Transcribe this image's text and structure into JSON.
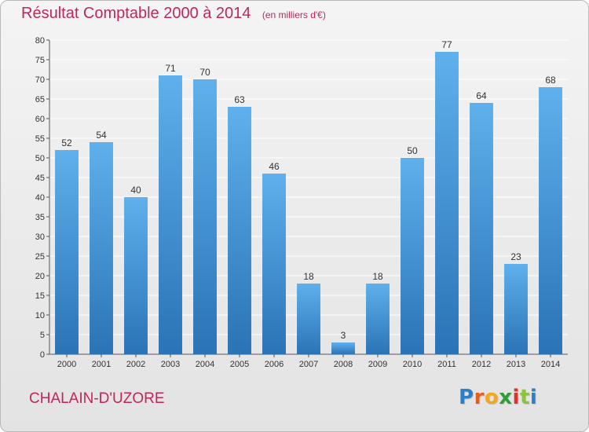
{
  "header": {
    "title": "Résultat Comptable 2000 à 2014",
    "subtitle": "(en milliers d'€)"
  },
  "footer": {
    "town": "CHALAIN-D'UZORE",
    "logo": {
      "text": "Proxiti",
      "letter_colors": [
        "#2e7fc6",
        "#e85d1d",
        "#f2a81d",
        "#2d9c3c",
        "#e0322d",
        "#8bc53f",
        "#2e7fc6"
      ]
    }
  },
  "colors": {
    "bar_top": "#5fb0ec",
    "bar_bottom": "#2a73b6",
    "axis": "#555555",
    "grid": "#ffffff",
    "title": "#c0265a"
  },
  "chart_data": {
    "type": "bar",
    "title": "Résultat Comptable 2000 à 2014",
    "subtitle": "(en milliers d'€)",
    "xlabel": "",
    "ylabel": "",
    "categories": [
      "2000",
      "2001",
      "2002",
      "2003",
      "2004",
      "2005",
      "2006",
      "2007",
      "2008",
      "2009",
      "2010",
      "2011",
      "2012",
      "2013",
      "2014"
    ],
    "values": [
      52,
      54,
      40,
      71,
      70,
      63,
      46,
      18,
      3,
      18,
      50,
      77,
      64,
      23,
      68
    ],
    "ylim": [
      0,
      80
    ],
    "yticks": [
      0,
      5,
      10,
      15,
      20,
      25,
      30,
      35,
      40,
      45,
      50,
      55,
      60,
      65,
      70,
      75,
      80
    ],
    "grid": true,
    "data_labels": true
  }
}
